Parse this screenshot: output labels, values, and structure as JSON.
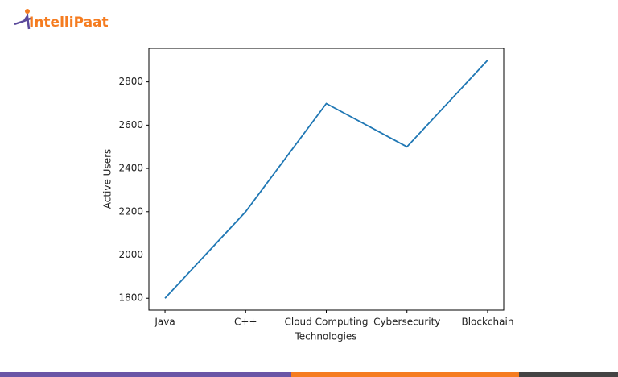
{
  "logo": "IntelliPaat",
  "chart_data": {
    "type": "line",
    "categories": [
      "Java",
      "C++",
      "Cloud Computing",
      "Cybersecurity",
      "Blockchain"
    ],
    "values": [
      1800,
      2200,
      2700,
      2500,
      2900
    ],
    "color": "#1f77b4",
    "xlabel": "Technologies",
    "ylabel": "Active Users",
    "ylim": [
      1745,
      2955
    ],
    "yticks": [
      1800,
      2000,
      2200,
      2400,
      2600,
      2800
    ]
  }
}
